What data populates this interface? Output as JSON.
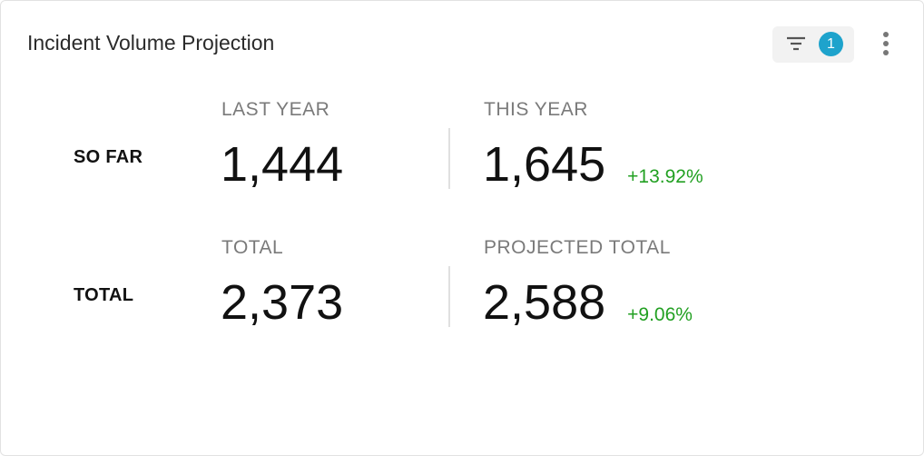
{
  "header": {
    "title": "Incident Volume Projection",
    "filter_count": "1"
  },
  "rows": [
    {
      "label": "SO FAR",
      "left": {
        "label": "LAST YEAR",
        "value": "1,444"
      },
      "right": {
        "label": "THIS YEAR",
        "value": "1,645",
        "change": "+13.92%"
      }
    },
    {
      "label": "TOTAL",
      "left": {
        "label": "TOTAL",
        "value": "2,373"
      },
      "right": {
        "label": "PROJECTED TOTAL",
        "value": "2,588",
        "change": "+9.06%"
      }
    }
  ]
}
